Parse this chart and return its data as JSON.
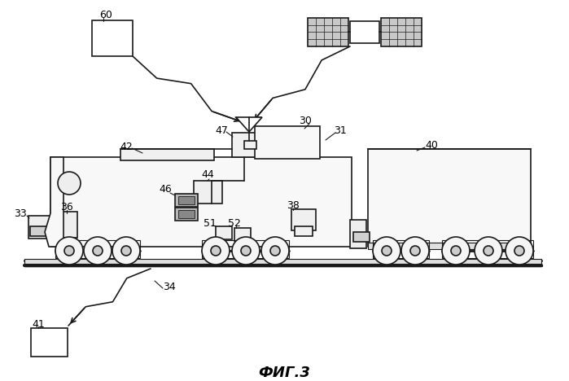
{
  "title": "ФИГ.3",
  "bg_color": "#ffffff",
  "line_color": "#1a1a1a",
  "title_fontsize": 13,
  "label_fontsize": 9
}
